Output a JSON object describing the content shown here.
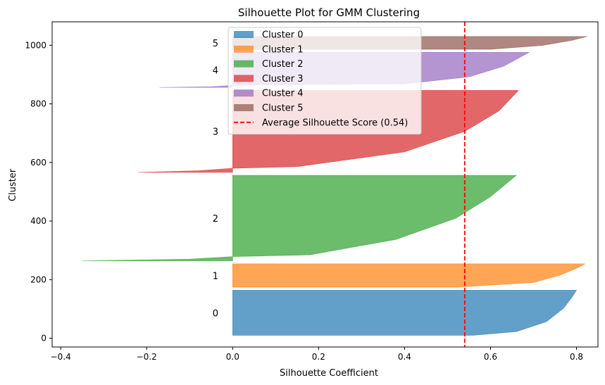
{
  "chart_data": {
    "type": "area",
    "title": "Silhouette Plot for GMM Clustering",
    "xlabel": "Silhouette Coefficient",
    "ylabel": "Cluster",
    "xlim": [
      -0.42,
      0.85
    ],
    "ylim": [
      -30,
      1080
    ],
    "xticks": [
      -0.4,
      -0.2,
      0.0,
      0.2,
      0.4,
      0.6,
      0.8
    ],
    "xtick_labels": [
      "−0.4",
      "−0.2",
      "0.0",
      "0.2",
      "0.4",
      "0.6",
      "0.8"
    ],
    "yticks": [
      0,
      200,
      400,
      600,
      800,
      1000
    ],
    "ytick_labels": [
      "0",
      "200",
      "400",
      "600",
      "800",
      "1000"
    ],
    "legend_position": "upper-center",
    "series": [
      {
        "name": "Cluster 0",
        "label": "0",
        "color": "#1f77b4",
        "y_start": 10,
        "y_end": 164,
        "profile": [
          [
            0,
            0.56
          ],
          [
            0.08,
            0.66
          ],
          [
            0.3,
            0.73
          ],
          [
            0.6,
            0.77
          ],
          [
            0.85,
            0.79
          ],
          [
            1,
            0.8
          ]
        ]
      },
      {
        "name": "Cluster 1",
        "label": "1",
        "color": "#ff7f0e",
        "y_start": 174,
        "y_end": 254,
        "profile": [
          [
            0,
            0.52
          ],
          [
            0.2,
            0.7
          ],
          [
            0.5,
            0.76
          ],
          [
            0.8,
            0.8
          ],
          [
            1,
            0.82
          ]
        ]
      },
      {
        "name": "Cluster 2",
        "label": "2",
        "color": "#2ca02c",
        "y_start": 264,
        "y_end": 556,
        "profile": [
          [
            0,
            -0.35
          ],
          [
            0.02,
            -0.1
          ],
          [
            0.05,
            0.0
          ],
          [
            0.07,
            0.18
          ],
          [
            0.25,
            0.38
          ],
          [
            0.5,
            0.52
          ],
          [
            0.75,
            0.6
          ],
          [
            1,
            0.66
          ]
        ]
      },
      {
        "name": "Cluster 3",
        "label": "3",
        "color": "#d62728",
        "y_start": 566,
        "y_end": 846,
        "profile": [
          [
            0,
            -0.22
          ],
          [
            0.02,
            -0.08
          ],
          [
            0.05,
            0.0
          ],
          [
            0.07,
            0.15
          ],
          [
            0.25,
            0.4
          ],
          [
            0.5,
            0.54
          ],
          [
            0.75,
            0.62
          ],
          [
            1,
            0.665
          ]
        ]
      },
      {
        "name": "Cluster 4",
        "label": "4",
        "color": "#9467bd",
        "y_start": 856,
        "y_end": 976,
        "profile": [
          [
            0,
            -0.17
          ],
          [
            0.02,
            -0.05
          ],
          [
            0.06,
            0.0
          ],
          [
            0.1,
            0.4
          ],
          [
            0.3,
            0.55
          ],
          [
            0.6,
            0.63
          ],
          [
            1,
            0.69
          ]
        ]
      },
      {
        "name": "Cluster 5",
        "label": "5",
        "color": "#8c564b",
        "y_start": 986,
        "y_end": 1030,
        "profile": [
          [
            0,
            0.6
          ],
          [
            0.3,
            0.72
          ],
          [
            0.7,
            0.79
          ],
          [
            1,
            0.825
          ]
        ]
      }
    ],
    "reference_line": {
      "name": "Average Silhouette Score (0.54)",
      "x": 0.54,
      "color": "#ff0000"
    }
  }
}
